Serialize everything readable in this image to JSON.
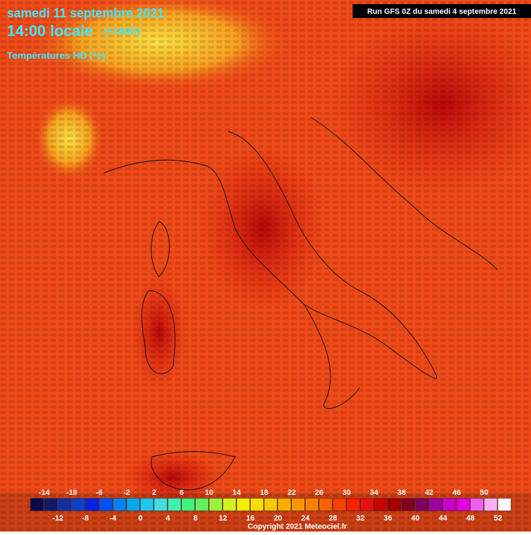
{
  "header": {
    "date": "samedi 11 septembre 2021",
    "time": "14:00 locale",
    "lead": "(+180h)",
    "parameter": "Températures HD (°c)",
    "run": "Run GFS 0Z du samedi 4 septembre 2021"
  },
  "legend": {
    "colors": [
      "#0a0a4a",
      "#0d1a6e",
      "#1030a0",
      "#1040c8",
      "#0a20e0",
      "#0050f0",
      "#0080f0",
      "#00a8f0",
      "#20c8f0",
      "#40e0e0",
      "#40f0b0",
      "#40f080",
      "#60f060",
      "#a0f040",
      "#d0f020",
      "#f0f000",
      "#f8e000",
      "#f8c800",
      "#f8b000",
      "#f89800",
      "#f88000",
      "#f86000",
      "#f84000",
      "#f82000",
      "#e81010",
      "#c80000",
      "#a00000",
      "#800020",
      "#800060",
      "#a000a0",
      "#c800c8",
      "#e000e0",
      "#f060f0",
      "#f8b0f8",
      "#ffffff"
    ],
    "top_labels": [
      -14,
      -10,
      -6,
      -2,
      2,
      6,
      10,
      14,
      18,
      22,
      26,
      30,
      34,
      38,
      42,
      46,
      50
    ],
    "bottom_labels": [
      -12,
      -8,
      -4,
      0,
      4,
      8,
      12,
      16,
      20,
      24,
      28,
      32,
      36,
      40,
      44,
      48,
      52
    ]
  },
  "footer": {
    "copyright": "Copyright 2021 Meteociel.fr"
  }
}
